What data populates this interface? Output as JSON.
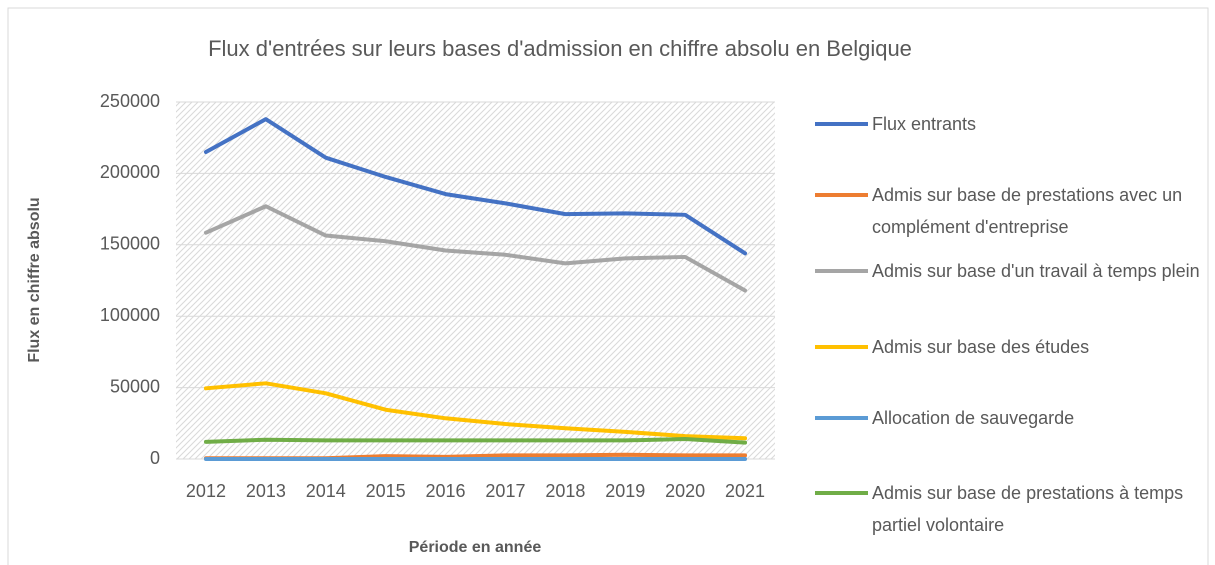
{
  "chart_data": {
    "type": "line",
    "title": "Flux d'entrées sur leurs bases d'admission en chiffre absolu en Belgique",
    "x_label": "Période en année",
    "y_label": "Flux en chiffre absolu",
    "categories": [
      "2012",
      "2013",
      "2014",
      "2015",
      "2016",
      "2017",
      "2018",
      "2019",
      "2020",
      "2021"
    ],
    "series": [
      {
        "name": "Flux entrants",
        "color": "#4472c4",
        "values": [
          215000,
          238000,
          211000,
          197500,
          185500,
          179000,
          171500,
          172000,
          171000,
          144000
        ]
      },
      {
        "name": "Admis sur base de prestations avec un complément d'entreprise",
        "color": "#ed7d31",
        "values": [
          500,
          500,
          500,
          2000,
          1500,
          2500,
          2500,
          3000,
          2500,
          2500
        ]
      },
      {
        "name": "Admis sur base d'un travail à temps plein",
        "color": "#a5a5a5",
        "values": [
          158500,
          177000,
          156500,
          152500,
          146000,
          143000,
          137000,
          140500,
          141500,
          118000
        ]
      },
      {
        "name": "Admis sur base des études",
        "color": "#ffc000",
        "values": [
          49500,
          53000,
          46000,
          34500,
          28500,
          24500,
          21500,
          19000,
          16000,
          14500
        ]
      },
      {
        "name": "Allocation de sauvegarde",
        "color": "#5b9bd5",
        "values": [
          0,
          0,
          0,
          0,
          0,
          0,
          0,
          0,
          0,
          0
        ]
      },
      {
        "name": "Admis sur base de prestations à temps partiel volontaire",
        "color": "#70ad47",
        "values": [
          12000,
          13500,
          13000,
          13000,
          13000,
          13000,
          13000,
          13000,
          14000,
          11500
        ]
      }
    ],
    "ylim": [
      0,
      250000
    ],
    "yticks": [
      0,
      50000,
      100000,
      150000,
      200000,
      250000
    ],
    "grid": true,
    "legend": "right"
  }
}
